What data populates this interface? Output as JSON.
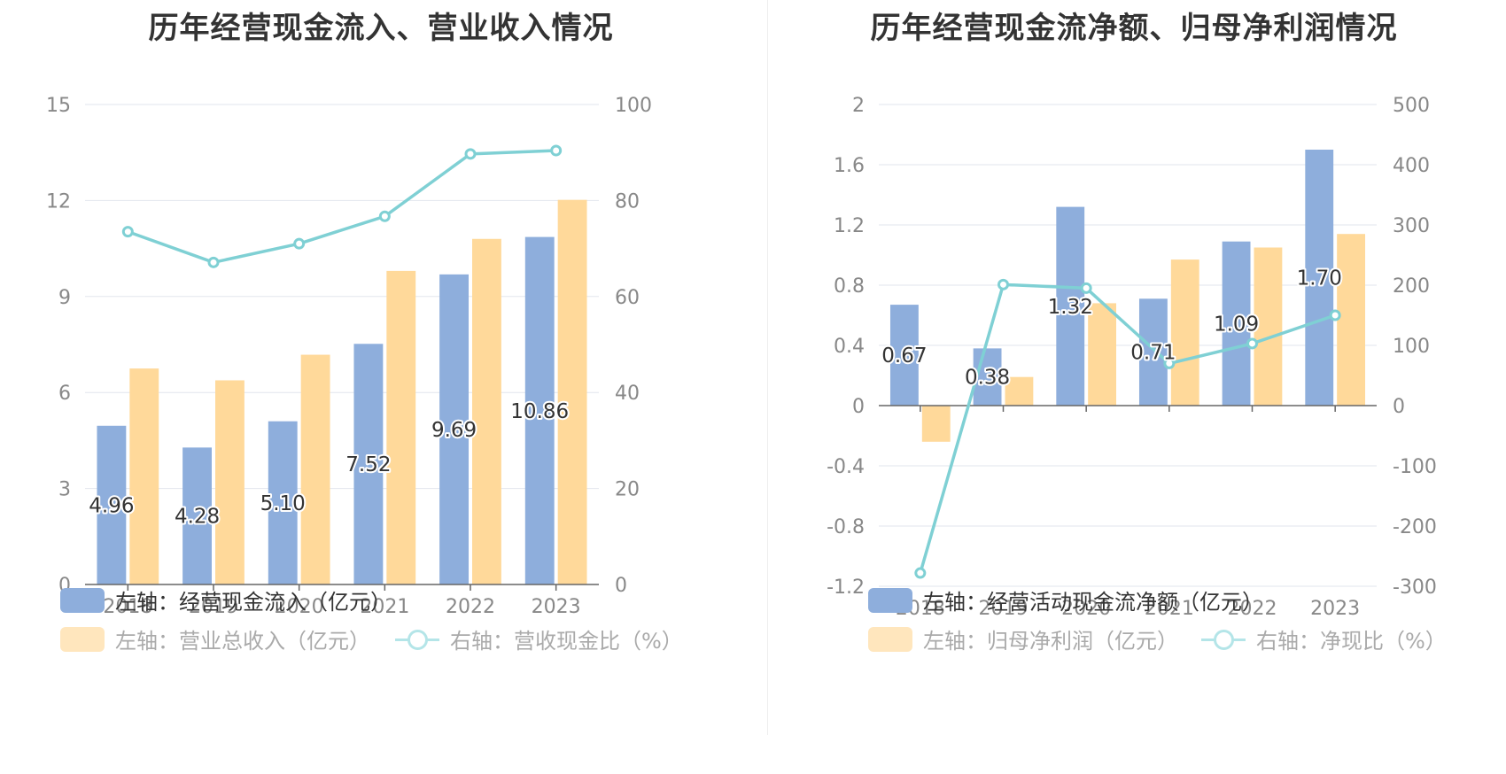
{
  "colors": {
    "bar_primary": "#8eaedc",
    "bar_secondary": "#ffd99a",
    "bar_secondary_legend": "#ffe6bd",
    "line": "#7fd0d4",
    "line_legend": "#b4e5e8",
    "axis_text": "#888888",
    "grid": "#e2e6ee"
  },
  "chart_data": [
    {
      "type": "bar",
      "title": "历年经营现金流入、营业收入情况",
      "categories": [
        "2018",
        "2019",
        "2020",
        "2021",
        "2022",
        "2023"
      ],
      "y_left": {
        "ticks": [
          "0",
          "3",
          "6",
          "9",
          "12",
          "15"
        ],
        "range": [
          0,
          15
        ]
      },
      "y_right": {
        "ticks": [
          "0",
          "20",
          "40",
          "60",
          "80",
          "100"
        ],
        "range": [
          0,
          100
        ]
      },
      "series": [
        {
          "name": "左轴：经营现金流入（亿元）",
          "axis": "left",
          "kind": "bar",
          "values": [
            4.96,
            4.28,
            5.1,
            7.52,
            9.69,
            10.86
          ],
          "labels": [
            "4.96",
            "4.28",
            "5.10",
            "7.52",
            "9.69",
            "10.86"
          ]
        },
        {
          "name": "左轴：营业总收入（亿元）",
          "axis": "left",
          "kind": "bar",
          "values": [
            6.75,
            6.38,
            7.18,
            9.8,
            10.8,
            12.02
          ]
        },
        {
          "name": "右轴：营收现金比（%）",
          "axis": "right",
          "kind": "line",
          "values": [
            73.5,
            67.1,
            71.0,
            76.7,
            89.7,
            90.4
          ]
        }
      ]
    },
    {
      "type": "bar",
      "title": "历年经营现金流净额、归母净利润情况",
      "categories": [
        "2018",
        "2019",
        "2020",
        "2021",
        "2022",
        "2023"
      ],
      "y_left": {
        "ticks": [
          "-1.2",
          "-0.8",
          "-0.4",
          "0",
          "0.4",
          "0.8",
          "1.2",
          "1.6",
          "2"
        ],
        "range": [
          -1.2,
          2
        ]
      },
      "y_right": {
        "ticks": [
          "-300",
          "-200",
          "-100",
          "0",
          "100",
          "200",
          "300",
          "400",
          "500"
        ],
        "range": [
          -300,
          500
        ]
      },
      "series": [
        {
          "name": "左轴：经营活动现金流净额（亿元）",
          "axis": "left",
          "kind": "bar",
          "values": [
            0.67,
            0.38,
            1.32,
            0.71,
            1.09,
            1.7
          ],
          "labels": [
            "0.67",
            "0.38",
            "1.32",
            "0.71",
            "1.09",
            "1.70"
          ]
        },
        {
          "name": "左轴：归母净利润（亿元）",
          "axis": "left",
          "kind": "bar",
          "values": [
            -0.24,
            0.19,
            0.68,
            0.97,
            1.05,
            1.14
          ]
        },
        {
          "name": "右轴：净现比（%）",
          "axis": "right",
          "kind": "line",
          "values": [
            -278,
            201,
            195,
            70,
            103,
            150
          ]
        }
      ]
    }
  ]
}
